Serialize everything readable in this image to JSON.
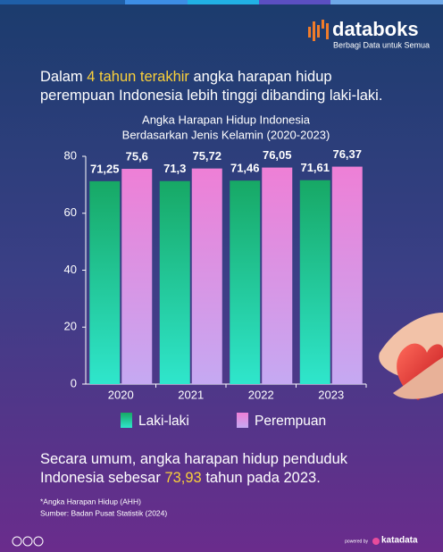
{
  "brand": {
    "name": "databoks",
    "tagline": "Berbagi Data untuk Semua"
  },
  "headline": {
    "lines": [
      [
        "Dalam ",
        "4 tahun terakhir",
        " angka harapan hidup"
      ],
      [
        "perempuan Indonesia lebih tinggi dibanding laki-laki."
      ]
    ]
  },
  "chart_data": {
    "type": "bar",
    "title": "Angka Harapan Hidup Indonesia",
    "subtitle": "Berdasarkan Jenis Kelamin (2020-2023)",
    "categories": [
      "2020",
      "2021",
      "2022",
      "2023"
    ],
    "series": [
      {
        "name": "Laki-laki",
        "color": "#17a865",
        "values": [
          71.25,
          71.3,
          71.46,
          71.61
        ],
        "value_labels": [
          "71,25",
          "71,3",
          "71,46",
          "71,61"
        ]
      },
      {
        "name": "Perempuan",
        "color": "#ee7fd6",
        "values": [
          75.6,
          75.72,
          76.05,
          76.37
        ],
        "value_labels": [
          "75,6",
          "75,72",
          "76,05",
          "76,37"
        ]
      }
    ],
    "ylim": [
      0,
      80
    ],
    "yticks": [
      0,
      20,
      40,
      60,
      80
    ],
    "grid": false,
    "legend": "bottom"
  },
  "summary": {
    "lines": [
      [
        "Secara umum, angka harapan hidup penduduk"
      ],
      [
        "Indonesia sebesar ",
        "73,93",
        " tahun pada 2023."
      ]
    ]
  },
  "notes": [
    "*Angka Harapan Hidup (AHH)",
    "Sumber: Badan Pusat Statistik (2024)"
  ],
  "footer": {
    "powered_by": "powered by",
    "logo": "katadata"
  }
}
